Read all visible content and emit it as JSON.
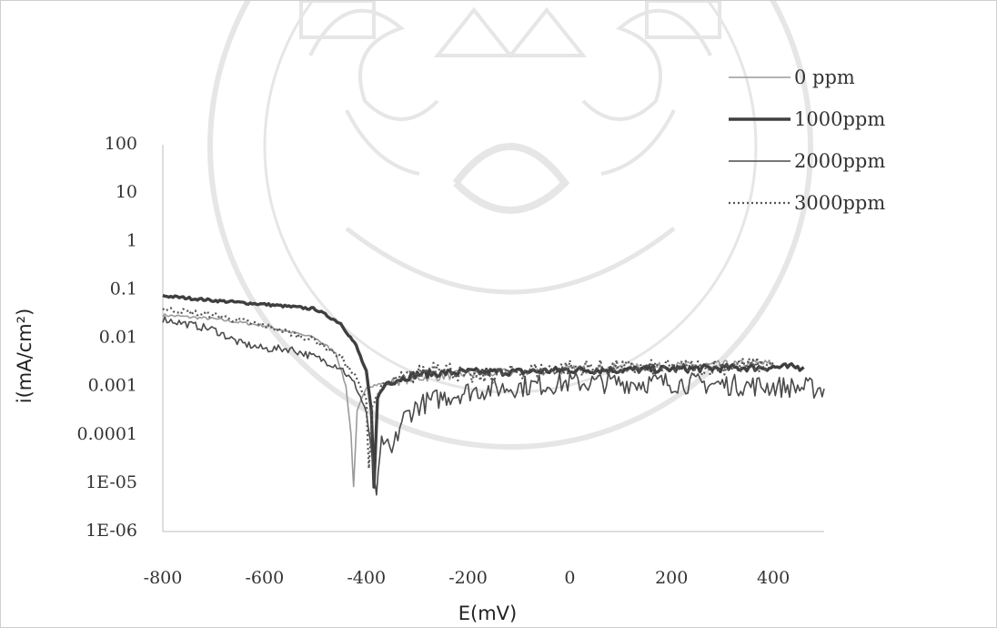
{
  "chart_data": {
    "type": "line",
    "title": "",
    "xlabel": "E(mV)",
    "ylabel": "i(mA/cm²)",
    "xlim": [
      -800,
      500
    ],
    "ylim_log10": [
      -6,
      2
    ],
    "y_scale": "log",
    "x_ticks": [
      "-800",
      "-600",
      "-400",
      "-200",
      "0",
      "200",
      "400"
    ],
    "y_ticks": [
      "100",
      "10",
      "1",
      "0.1",
      "0.01",
      "0.001",
      "0.0001",
      "1E-05",
      "1E-06"
    ],
    "legend_position": "top-right",
    "series": [
      {
        "name": "0 ppm",
        "color": "#9a9a9a",
        "style": "solid",
        "points": [
          [
            -800,
            0.03
          ],
          [
            -700,
            0.025
          ],
          [
            -600,
            0.018
          ],
          [
            -500,
            0.01
          ],
          [
            -460,
            0.005
          ],
          [
            -440,
            0.001
          ],
          [
            -430,
            0.0001
          ],
          [
            -425,
            8e-06
          ],
          [
            -418,
            0.0003
          ],
          [
            -400,
            0.001
          ],
          [
            -300,
            0.0015
          ],
          [
            -200,
            0.0018
          ],
          [
            -100,
            0.002
          ],
          [
            0,
            0.0022
          ],
          [
            100,
            0.0024
          ],
          [
            200,
            0.0026
          ],
          [
            300,
            0.0028
          ],
          [
            400,
            0.003
          ]
        ]
      },
      {
        "name": "1000ppm",
        "color": "#3f3f3f",
        "style": "thick",
        "points": [
          [
            -800,
            0.075
          ],
          [
            -700,
            0.06
          ],
          [
            -600,
            0.05
          ],
          [
            -500,
            0.04
          ],
          [
            -450,
            0.02
          ],
          [
            -420,
            0.007
          ],
          [
            -400,
            0.002
          ],
          [
            -390,
            0.0003
          ],
          [
            -385,
            8e-06
          ],
          [
            -378,
            0.0006
          ],
          [
            -360,
            0.0012
          ],
          [
            -300,
            0.0018
          ],
          [
            -200,
            0.002
          ],
          [
            -100,
            0.002
          ],
          [
            0,
            0.0022
          ],
          [
            100,
            0.0022
          ],
          [
            200,
            0.0023
          ],
          [
            300,
            0.0024
          ],
          [
            400,
            0.0025
          ],
          [
            460,
            0.0025
          ]
        ]
      },
      {
        "name": "2000ppm",
        "color": "#4a4a4a",
        "style": "solid",
        "points": [
          [
            -800,
            0.025
          ],
          [
            -700,
            0.015
          ],
          [
            -650,
            0.008
          ],
          [
            -600,
            0.006
          ],
          [
            -550,
            0.006
          ],
          [
            -500,
            0.004
          ],
          [
            -450,
            0.0025
          ],
          [
            -420,
            0.001
          ],
          [
            -400,
            0.0003
          ],
          [
            -380,
            6e-06
          ],
          [
            -370,
            8e-05
          ],
          [
            -350,
            4e-05
          ],
          [
            -330,
            0.0002
          ],
          [
            -300,
            0.0004
          ],
          [
            -250,
            0.0006
          ],
          [
            -200,
            0.0008
          ],
          [
            -100,
            0.001
          ],
          [
            0,
            0.0012
          ],
          [
            100,
            0.0012
          ],
          [
            200,
            0.0012
          ],
          [
            300,
            0.0011
          ],
          [
            400,
            0.001
          ],
          [
            500,
            0.0009
          ]
        ]
      },
      {
        "name": "3000ppm",
        "color": "#555555",
        "style": "dotted",
        "points": [
          [
            -800,
            0.04
          ],
          [
            -700,
            0.03
          ],
          [
            -600,
            0.018
          ],
          [
            -500,
            0.009
          ],
          [
            -450,
            0.004
          ],
          [
            -420,
            0.0015
          ],
          [
            -400,
            0.0005
          ],
          [
            -395,
            2e-05
          ],
          [
            -388,
            0.0004
          ],
          [
            -370,
            0.001
          ],
          [
            -300,
            0.0018
          ],
          [
            -260,
            0.003
          ],
          [
            -200,
            0.0015
          ],
          [
            -100,
            0.002
          ],
          [
            0,
            0.0025
          ],
          [
            100,
            0.0024
          ],
          [
            200,
            0.0024
          ],
          [
            300,
            0.0026
          ],
          [
            400,
            0.0028
          ]
        ]
      }
    ]
  }
}
